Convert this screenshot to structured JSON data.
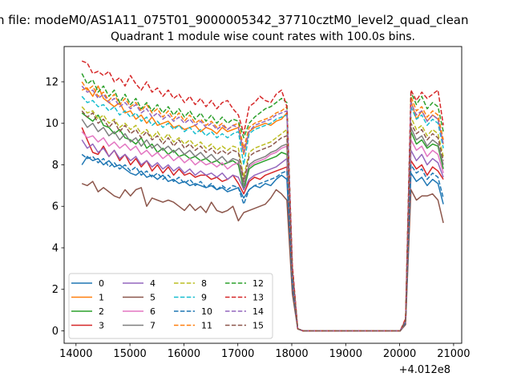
{
  "figure": {
    "suptitle": "n file: modeM0/AS1A11_075T01_9000005342_37710cztM0_level2_quad_clean",
    "title": "Quadrant 1 module wise count rates with 100.0s bins.",
    "x_offset_label": "+4.012e8"
  },
  "chart_data": {
    "type": "line",
    "title": "Quadrant 1 module wise count rates with 100.0s bins.",
    "xlabel": "",
    "ylabel": "",
    "xlim": [
      13780,
      21150
    ],
    "ylim": [
      -0.6,
      13.7
    ],
    "x_ticks": [
      14000,
      15000,
      16000,
      17000,
      18000,
      19000,
      20000,
      21000
    ],
    "y_ticks": [
      0,
      2,
      4,
      6,
      8,
      10,
      12
    ],
    "x_offset": "+4.012e8",
    "grid": false,
    "legend_location": "lower-left",
    "legend_columns": 4,
    "series_style": {
      "0": [
        "#1f77b4",
        "solid"
      ],
      "1": [
        "#ff7f0e",
        "solid"
      ],
      "2": [
        "#2ca02c",
        "solid"
      ],
      "3": [
        "#d62728",
        "solid"
      ],
      "4": [
        "#9467bd",
        "solid"
      ],
      "5": [
        "#8c564b",
        "solid"
      ],
      "6": [
        "#e377c2",
        "solid"
      ],
      "7": [
        "#7f7f7f",
        "solid"
      ],
      "8": [
        "#bcbd22",
        "dashed"
      ],
      "9": [
        "#17becf",
        "dashed"
      ],
      "10": [
        "#1f77b4",
        "dashed"
      ],
      "11": [
        "#ff7f0e",
        "dashed"
      ],
      "12": [
        "#2ca02c",
        "dashed"
      ],
      "13": [
        "#d62728",
        "dashed"
      ],
      "14": [
        "#9467bd",
        "dashed"
      ],
      "15": [
        "#8c564b",
        "dashed"
      ]
    },
    "x_segment_1": [
      14110,
      14210,
      14310,
      14410,
      14510,
      14610,
      14710,
      14810,
      14910,
      15010,
      15110,
      15210,
      15310,
      15410,
      15510,
      15610,
      15710,
      15810,
      15910,
      16010,
      16110,
      16210,
      16310,
      16410,
      16510,
      16610,
      16710,
      16810,
      16910,
      17010,
      17110,
      17210,
      17310,
      17410,
      17510,
      17610,
      17710,
      17810,
      17910
    ],
    "x_segment_2": [
      18010,
      18110,
      18210,
      20010,
      20110,
      20210,
      20310,
      20410,
      20510,
      20610,
      20710,
      20810
    ],
    "series": [
      {
        "name": "0",
        "seg1": [
          8.0,
          8.4,
          8.2,
          8.3,
          8.0,
          8.2,
          7.9,
          8.0,
          7.8,
          7.6,
          7.5,
          7.7,
          7.4,
          7.5,
          7.3,
          7.5,
          7.2,
          7.3,
          7.1,
          7.2,
          7.0,
          7.1,
          7.0,
          6.9,
          7.0,
          6.8,
          6.9,
          6.7,
          6.8,
          6.9,
          6.4,
          6.8,
          7.0,
          6.9,
          7.1,
          7.0,
          7.3,
          7.5,
          7.3
        ],
        "seg2": [
          2.2,
          0.1,
          0.0,
          0.0,
          0.4,
          7.6,
          7.2,
          7.4,
          7.0,
          7.3,
          7.1,
          6.1
        ]
      },
      {
        "name": "1",
        "seg1": [
          11.6,
          11.7,
          11.3,
          11.8,
          11.2,
          11.0,
          10.8,
          11.0,
          10.5,
          10.6,
          10.2,
          10.4,
          10.0,
          10.3,
          9.9,
          10.0,
          10.1,
          9.8,
          9.9,
          9.7,
          9.8,
          9.9,
          9.6,
          9.8,
          9.7,
          9.5,
          9.8,
          9.6,
          9.7,
          9.8,
          8.5,
          9.6,
          9.8,
          9.9,
          10.0,
          9.9,
          10.1,
          10.2,
          10.5
        ],
        "seg2": [
          2.9,
          0.1,
          0.0,
          0.0,
          0.5,
          11.1,
          10.2,
          10.6,
          10.1,
          10.4,
          10.2,
          9.0
        ]
      },
      {
        "name": "2",
        "seg1": [
          10.5,
          10.3,
          10.1,
          10.4,
          9.9,
          9.8,
          9.5,
          9.7,
          9.3,
          9.2,
          9.0,
          9.3,
          8.8,
          9.0,
          8.6,
          8.8,
          8.5,
          8.7,
          8.4,
          8.5,
          8.3,
          8.4,
          8.2,
          8.3,
          8.1,
          8.2,
          8.0,
          8.1,
          8.2,
          8.0,
          6.8,
          7.8,
          8.0,
          8.1,
          8.2,
          8.3,
          8.4,
          8.6,
          8.5
        ],
        "seg2": [
          2.7,
          0.1,
          0.0,
          0.0,
          0.5,
          9.6,
          9.0,
          9.2,
          8.8,
          9.0,
          8.9,
          7.8
        ]
      },
      {
        "name": "3",
        "seg1": [
          9.8,
          9.2,
          8.6,
          8.5,
          8.9,
          8.4,
          8.7,
          8.2,
          8.5,
          8.0,
          8.3,
          7.9,
          8.2,
          7.7,
          8.0,
          7.6,
          7.9,
          7.5,
          7.8,
          7.5,
          7.6,
          7.4,
          7.5,
          7.5,
          7.3,
          7.4,
          7.2,
          7.3,
          7.5,
          7.1,
          6.6,
          7.2,
          7.4,
          7.3,
          7.5,
          7.6,
          7.7,
          7.8,
          7.9
        ],
        "seg2": [
          2.4,
          0.1,
          0.0,
          0.0,
          0.4,
          8.2,
          7.8,
          8.0,
          7.5,
          7.9,
          7.7,
          7.3
        ]
      },
      {
        "name": "4",
        "seg1": [
          9.2,
          8.8,
          9.0,
          8.6,
          8.8,
          8.4,
          8.7,
          8.3,
          8.5,
          8.2,
          8.4,
          8.0,
          8.2,
          7.9,
          8.1,
          7.8,
          8.0,
          7.7,
          7.9,
          7.6,
          7.8,
          7.5,
          7.7,
          7.5,
          7.6,
          7.4,
          7.6,
          7.3,
          7.5,
          7.4,
          6.8,
          7.3,
          7.5,
          7.6,
          7.7,
          7.8,
          7.9,
          8.1,
          8.3
        ],
        "seg2": [
          2.5,
          0.1,
          0.0,
          0.0,
          0.4,
          8.7,
          8.2,
          8.5,
          8.0,
          8.3,
          8.1,
          7.4
        ]
      },
      {
        "name": "5",
        "seg1": [
          7.1,
          7.0,
          7.2,
          6.7,
          6.9,
          6.7,
          6.5,
          6.4,
          6.8,
          6.5,
          6.8,
          6.9,
          6.0,
          6.4,
          6.3,
          6.2,
          6.3,
          6.2,
          6.0,
          5.8,
          6.1,
          5.8,
          6.0,
          5.7,
          6.2,
          5.8,
          5.7,
          5.8,
          6.0,
          5.3,
          5.7,
          5.8,
          5.9,
          6.0,
          6.1,
          6.4,
          6.8,
          6.6,
          6.3
        ],
        "seg2": [
          1.8,
          0.1,
          0.0,
          0.0,
          0.3,
          6.8,
          6.3,
          6.5,
          6.5,
          6.6,
          6.3,
          5.2
        ]
      },
      {
        "name": "6",
        "seg1": [
          9.6,
          9.3,
          9.4,
          9.1,
          9.3,
          8.9,
          9.1,
          8.8,
          9.0,
          8.7,
          8.9,
          8.5,
          8.7,
          8.4,
          8.6,
          8.3,
          8.5,
          8.2,
          8.4,
          8.1,
          8.3,
          8.0,
          8.2,
          8.0,
          8.1,
          7.9,
          8.1,
          7.8,
          8.0,
          8.1,
          7.5,
          7.9,
          8.1,
          8.2,
          8.3,
          8.5,
          8.6,
          8.8,
          8.9
        ],
        "seg2": [
          2.6,
          0.1,
          0.0,
          0.0,
          0.4,
          9.2,
          8.7,
          8.9,
          8.4,
          8.7,
          8.5,
          7.6
        ]
      },
      {
        "name": "7",
        "seg1": [
          10.2,
          9.8,
          10.0,
          9.6,
          9.8,
          9.4,
          9.6,
          9.2,
          9.5,
          9.1,
          9.3,
          8.9,
          9.2,
          8.8,
          9.0,
          8.7,
          8.9,
          8.6,
          8.8,
          8.5,
          8.7,
          8.4,
          8.6,
          8.3,
          8.5,
          8.2,
          8.4,
          8.1,
          8.3,
          8.2,
          7.0,
          8.0,
          8.2,
          8.3,
          8.4,
          8.6,
          8.7,
          8.9,
          9.0
        ],
        "seg2": [
          2.7,
          0.1,
          0.0,
          0.0,
          0.5,
          9.8,
          9.2,
          9.4,
          8.9,
          9.2,
          9.0,
          8.0
        ]
      },
      {
        "name": "8",
        "seg1": [
          10.8,
          10.5,
          10.6,
          10.2,
          10.4,
          10.0,
          10.2,
          9.8,
          10.0,
          9.7,
          9.9,
          9.5,
          9.7,
          9.3,
          9.6,
          9.2,
          9.5,
          9.1,
          9.3,
          9.0,
          9.2,
          8.9,
          9.1,
          8.8,
          9.0,
          8.7,
          8.9,
          8.7,
          8.9,
          8.8,
          7.4,
          8.6,
          8.8,
          8.9,
          9.0,
          9.1,
          9.3,
          9.5,
          9.7
        ],
        "seg2": [
          2.8,
          0.1,
          0.0,
          0.0,
          0.5,
          10.3,
          9.7,
          9.9,
          9.4,
          9.7,
          9.5,
          8.4
        ]
      },
      {
        "name": "9",
        "seg1": [
          11.3,
          11.0,
          11.1,
          10.8,
          10.9,
          10.6,
          10.8,
          10.4,
          10.6,
          10.3,
          10.5,
          10.1,
          10.3,
          9.9,
          10.1,
          9.8,
          10.0,
          9.7,
          9.9,
          9.6,
          9.8,
          9.5,
          9.7,
          9.4,
          9.6,
          9.3,
          9.5,
          9.3,
          9.5,
          9.6,
          8.0,
          9.5,
          9.7,
          9.8,
          9.9,
          10.0,
          10.2,
          10.3,
          10.4
        ],
        "seg2": [
          2.9,
          0.1,
          0.0,
          0.0,
          0.5,
          10.8,
          10.2,
          10.4,
          9.9,
          10.2,
          10.0,
          8.8
        ]
      },
      {
        "name": "10",
        "seg1": [
          8.5,
          8.3,
          8.4,
          8.1,
          8.3,
          7.9,
          8.1,
          7.8,
          8.0,
          7.7,
          7.9,
          7.5,
          7.7,
          7.4,
          7.6,
          7.3,
          7.5,
          7.2,
          7.4,
          7.1,
          7.3,
          7.0,
          7.2,
          6.9,
          7.1,
          6.8,
          7.0,
          6.8,
          7.0,
          6.9,
          6.1,
          6.8,
          7.0,
          7.1,
          7.2,
          7.3,
          7.4,
          7.6,
          7.7
        ],
        "seg2": [
          2.3,
          0.1,
          0.0,
          0.0,
          0.4,
          8.0,
          7.6,
          7.8,
          7.3,
          7.6,
          7.4,
          6.4
        ]
      },
      {
        "name": "11",
        "seg1": [
          12.0,
          11.6,
          11.8,
          11.3,
          11.5,
          11.1,
          11.4,
          10.9,
          11.2,
          10.8,
          11.0,
          10.6,
          10.9,
          10.5,
          10.7,
          10.3,
          10.6,
          10.2,
          10.5,
          10.1,
          10.4,
          10.0,
          10.2,
          9.9,
          10.1,
          9.8,
          10.0,
          9.7,
          9.9,
          10.0,
          8.8,
          9.8,
          10.0,
          10.1,
          10.2,
          10.3,
          10.5,
          10.6,
          10.8
        ],
        "seg2": [
          3.0,
          0.1,
          0.0,
          0.0,
          0.5,
          11.3,
          10.6,
          10.8,
          10.3,
          10.6,
          10.4,
          9.2
        ]
      },
      {
        "name": "12",
        "seg1": [
          12.4,
          11.9,
          12.1,
          11.5,
          11.8,
          11.3,
          11.6,
          11.0,
          11.4,
          10.9,
          11.2,
          10.7,
          11.0,
          10.6,
          10.9,
          10.5,
          10.8,
          10.4,
          10.7,
          10.3,
          10.6,
          10.2,
          10.5,
          10.1,
          10.4,
          10.0,
          10.3,
          10.0,
          10.2,
          10.1,
          9.3,
          10.0,
          10.3,
          10.5,
          10.7,
          10.8,
          11.0,
          11.2,
          11.0
        ],
        "seg2": [
          3.1,
          0.1,
          0.0,
          0.0,
          0.5,
          11.5,
          10.9,
          11.3,
          10.7,
          11.0,
          10.8,
          9.6
        ]
      },
      {
        "name": "13",
        "seg1": [
          13.0,
          12.9,
          12.4,
          12.5,
          12.3,
          12.5,
          12.0,
          12.2,
          11.8,
          12.3,
          11.9,
          11.6,
          12.0,
          11.5,
          11.7,
          11.3,
          11.6,
          11.2,
          11.4,
          11.0,
          11.3,
          10.9,
          11.2,
          10.8,
          11.1,
          10.7,
          11.0,
          11.1,
          10.7,
          10.4,
          9.5,
          10.8,
          11.0,
          11.3,
          11.1,
          11.0,
          11.4,
          11.6,
          10.8
        ],
        "seg2": [
          3.2,
          0.1,
          0.0,
          0.0,
          0.6,
          11.6,
          11.1,
          11.5,
          11.2,
          11.4,
          11.6,
          9.9
        ]
      },
      {
        "name": "14",
        "seg1": [
          11.8,
          11.5,
          11.6,
          11.2,
          11.4,
          11.0,
          11.2,
          10.8,
          11.0,
          10.7,
          10.9,
          10.5,
          10.7,
          10.3,
          10.5,
          10.2,
          10.4,
          10.1,
          10.3,
          10.0,
          10.2,
          9.9,
          10.1,
          9.8,
          10.0,
          9.7,
          9.9,
          9.7,
          9.9,
          9.8,
          8.6,
          9.6,
          9.9,
          10.0,
          10.1,
          10.2,
          10.4,
          10.5,
          10.6
        ],
        "seg2": [
          2.9,
          0.1,
          0.0,
          0.0,
          0.5,
          11.0,
          10.4,
          10.6,
          10.1,
          10.4,
          10.2,
          9.0
        ]
      },
      {
        "name": "15",
        "seg1": [
          10.6,
          10.3,
          10.5,
          10.0,
          10.2,
          9.8,
          10.1,
          9.6,
          9.9,
          9.5,
          9.7,
          9.3,
          9.6,
          9.2,
          9.4,
          9.0,
          9.3,
          8.9,
          9.2,
          8.8,
          9.0,
          8.7,
          8.9,
          8.6,
          8.8,
          8.5,
          8.7,
          8.5,
          8.7,
          8.6,
          7.2,
          8.4,
          8.6,
          8.7,
          8.8,
          8.9,
          9.1,
          9.3,
          9.4
        ],
        "seg2": [
          2.8,
          0.1,
          0.0,
          0.0,
          0.5,
          10.0,
          9.5,
          9.7,
          9.2,
          9.5,
          9.3,
          8.2
        ]
      }
    ]
  }
}
